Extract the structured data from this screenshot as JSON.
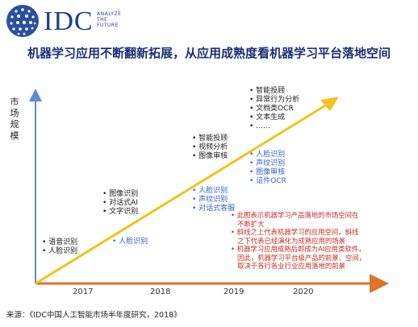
{
  "logo": {
    "brand": "IDC",
    "tagline": [
      "ANALYZE",
      "THE",
      "FUTURE"
    ]
  },
  "title": "机器学习应用不断翻新拓展，从应用成熟度看机器学习平台落地空间",
  "y_axis_label": [
    "市",
    "场",
    "规",
    "模"
  ],
  "x_ticks": [
    "2017",
    "2018",
    "2019",
    "2020"
  ],
  "colors": {
    "diagonal_arrow": "#f3c21b",
    "x_axis": "#e0732b",
    "y_axis": "#5a8fd1",
    "blue_text": "#2f62c9",
    "red_text": "#c32a23"
  },
  "stages": [
    {
      "dark_items": [
        "语音识别",
        "人脸识别"
      ],
      "blue_items": []
    },
    {
      "dark_items": [
        "图像识别",
        "对话式AI",
        "文字识别"
      ],
      "blue_items": [
        "人脸识别"
      ]
    },
    {
      "dark_items": [
        "智能投顾",
        "视频分析",
        "图像审核"
      ],
      "blue_items": [
        "人脸识别",
        "声纹识别",
        "对话式客服"
      ]
    },
    {
      "dark_items": [
        "智能投顾",
        "异常行为分析",
        "文档类OCR",
        "文本生成",
        "……"
      ],
      "blue_items": [
        "人脸识别",
        "声纹识别",
        "图像审核",
        "证件OCR"
      ]
    }
  ],
  "notes": [
    "此图表示机器学习产品落地的市场空间在",
    "不断扩大",
    "斜线之上代表机器学习的应用空间，斜线",
    "之下代表已经演化为成熟应用的场景",
    "机器学习应用成熟后即成为AI应用类软件，",
    "因此，机器学习平台级产品的前景、空间，",
    "取决于各行各业行业应用落地的前景"
  ],
  "source": "来源：《IDC中国人工智能市场半年度研究，2018》"
}
